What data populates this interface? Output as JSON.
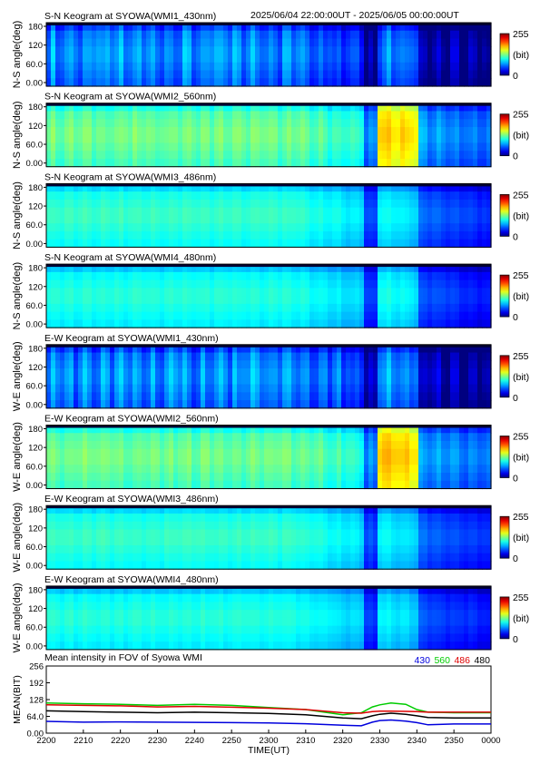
{
  "header": {
    "time_range": "2025/06/04 22:00:00UT - 2025/06/05 00:00:00UT"
  },
  "colorbar": {
    "max_label": "255",
    "unit_label": "(bit)",
    "min_label": "0"
  },
  "keogram_y_ticks": [
    "180",
    "120",
    "60.0",
    "0.00"
  ],
  "chart_data": [
    {
      "type": "heatmap",
      "title": "S-N Keogram at SYOWA(WMI1_430nm)",
      "ylabel": "N-S angle(deg)",
      "ylim": [
        0,
        180
      ],
      "zlim": [
        0,
        255
      ],
      "level": 0.28,
      "band": 0.09,
      "event": 0.1
    },
    {
      "type": "heatmap",
      "title": "S-N Keogram at SYOWA(WMI2_560nm)",
      "ylabel": "N-S angle(deg)",
      "ylim": [
        0,
        180
      ],
      "zlim": [
        0,
        255
      ],
      "level": 0.5,
      "band": 0.04,
      "event": 0.28
    },
    {
      "type": "heatmap",
      "title": "S-N Keogram at SYOWA(WMI3_486nm)",
      "ylabel": "N-S angle(deg)",
      "ylim": [
        0,
        180
      ],
      "zlim": [
        0,
        255
      ],
      "level": 0.44,
      "band": 0.02,
      "event": 0.05
    },
    {
      "type": "heatmap",
      "title": "S-N Keogram at SYOWA(WMI4_480nm)",
      "ylabel": "N-S angle(deg)",
      "ylim": [
        0,
        180
      ],
      "zlim": [
        0,
        255
      ],
      "level": 0.42,
      "band": 0.02,
      "event": 0.08
    },
    {
      "type": "heatmap",
      "title": "E-W Keogram at SYOWA(WMI1_430nm)",
      "ylabel": "W-E angle(deg)",
      "ylim": [
        0,
        180
      ],
      "zlim": [
        0,
        255
      ],
      "level": 0.28,
      "band": 0.09,
      "event": 0.1
    },
    {
      "type": "heatmap",
      "title": "E-W Keogram at SYOWA(WMI2_560nm)",
      "ylabel": "W-E angle(deg)",
      "ylim": [
        0,
        180
      ],
      "zlim": [
        0,
        255
      ],
      "level": 0.5,
      "band": 0.04,
      "event": 0.3
    },
    {
      "type": "heatmap",
      "title": "E-W Keogram at SYOWA(WMI3_486nm)",
      "ylabel": "W-E angle(deg)",
      "ylim": [
        0,
        180
      ],
      "zlim": [
        0,
        255
      ],
      "level": 0.44,
      "band": 0.02,
      "event": 0.04
    },
    {
      "type": "heatmap",
      "title": "E-W Keogram at SYOWA(WMI4_480nm)",
      "ylabel": "W-E angle(deg)",
      "ylim": [
        0,
        180
      ],
      "zlim": [
        0,
        255
      ],
      "level": 0.42,
      "band": 0.02,
      "event": 0.06
    },
    {
      "type": "line",
      "title": "Mean intensity in FOV of Syowa WMI",
      "ylabel": "MEAN(BIT)",
      "xlabel": "TIME(UT)",
      "x": [
        "2200",
        "2210",
        "2220",
        "2230",
        "2240",
        "2250",
        "2300",
        "2310",
        "2320",
        "2325",
        "2328",
        "2330",
        "2333",
        "2337",
        "2340",
        "2343",
        "2350",
        "0000"
      ],
      "x_ticks": [
        "2200",
        "2210",
        "2220",
        "2230",
        "2240",
        "2250",
        "2300",
        "2310",
        "2320",
        "2330",
        "2340",
        "2350",
        "0000"
      ],
      "y_ticks": [
        "256",
        "192",
        "128",
        "64.0",
        "0.00"
      ],
      "ylim": [
        0,
        256
      ],
      "series": [
        {
          "name": "430",
          "color": "#0000dd",
          "values": [
            45,
            42,
            43,
            42,
            41,
            40,
            39,
            36,
            30,
            28,
            42,
            48,
            50,
            46,
            40,
            32,
            35,
            35
          ]
        },
        {
          "name": "560",
          "color": "#00cc00",
          "values": [
            115,
            112,
            110,
            106,
            110,
            106,
            98,
            90,
            70,
            78,
            100,
            108,
            115,
            110,
            90,
            80,
            78,
            78
          ]
        },
        {
          "name": "486",
          "color": "#dd0000",
          "values": [
            108,
            106,
            104,
            100,
            102,
            99,
            95,
            90,
            78,
            76,
            82,
            84,
            84,
            83,
            82,
            80,
            80,
            80
          ]
        },
        {
          "name": "480",
          "color": "#000000",
          "values": [
            85,
            82,
            80,
            78,
            80,
            78,
            75,
            70,
            58,
            55,
            66,
            72,
            76,
            72,
            66,
            60,
            58,
            58
          ]
        }
      ]
    }
  ]
}
